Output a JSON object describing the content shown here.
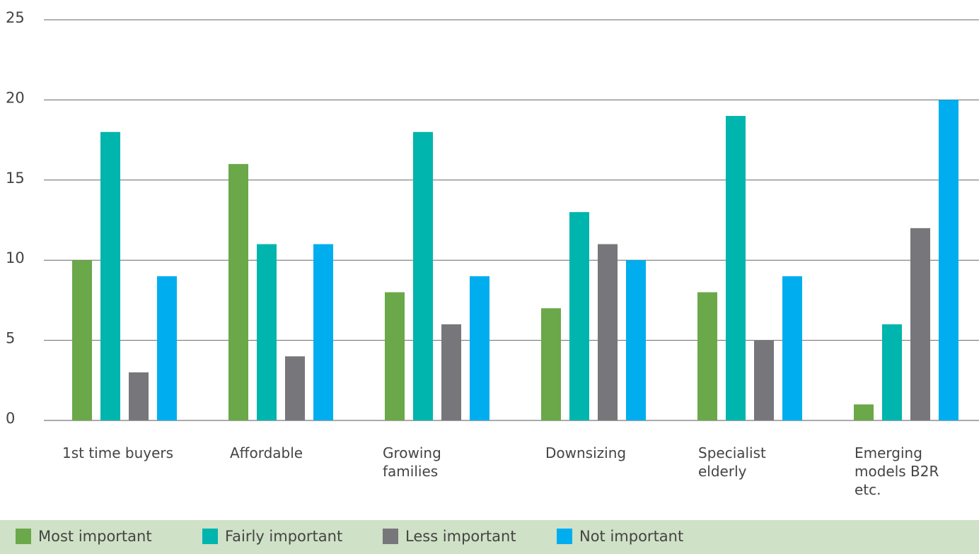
{
  "chart_data": {
    "type": "bar",
    "categories": [
      "1st time buyers",
      "Affordable",
      "Growing families",
      "Downsizing",
      "Specialist elderly",
      "Emerging models B2R etc."
    ],
    "series": [
      {
        "name": "Most important",
        "color": "#6aa84a",
        "values": [
          10,
          16,
          8,
          7,
          8,
          1
        ]
      },
      {
        "name": "Fairly important",
        "color": "#00b5ad",
        "values": [
          18,
          11,
          18,
          13,
          19,
          6
        ]
      },
      {
        "name": "Less important",
        "color": "#77777b",
        "values": [
          3,
          4,
          6,
          11,
          5,
          12
        ]
      },
      {
        "name": "Not important",
        "color": "#00aeef",
        "values": [
          9,
          11,
          9,
          10,
          9,
          20
        ]
      }
    ],
    "ylim": [
      0,
      25
    ],
    "yticks": [
      0,
      5,
      10,
      15,
      20,
      25
    ],
    "grid": true,
    "legend": "bottom"
  }
}
